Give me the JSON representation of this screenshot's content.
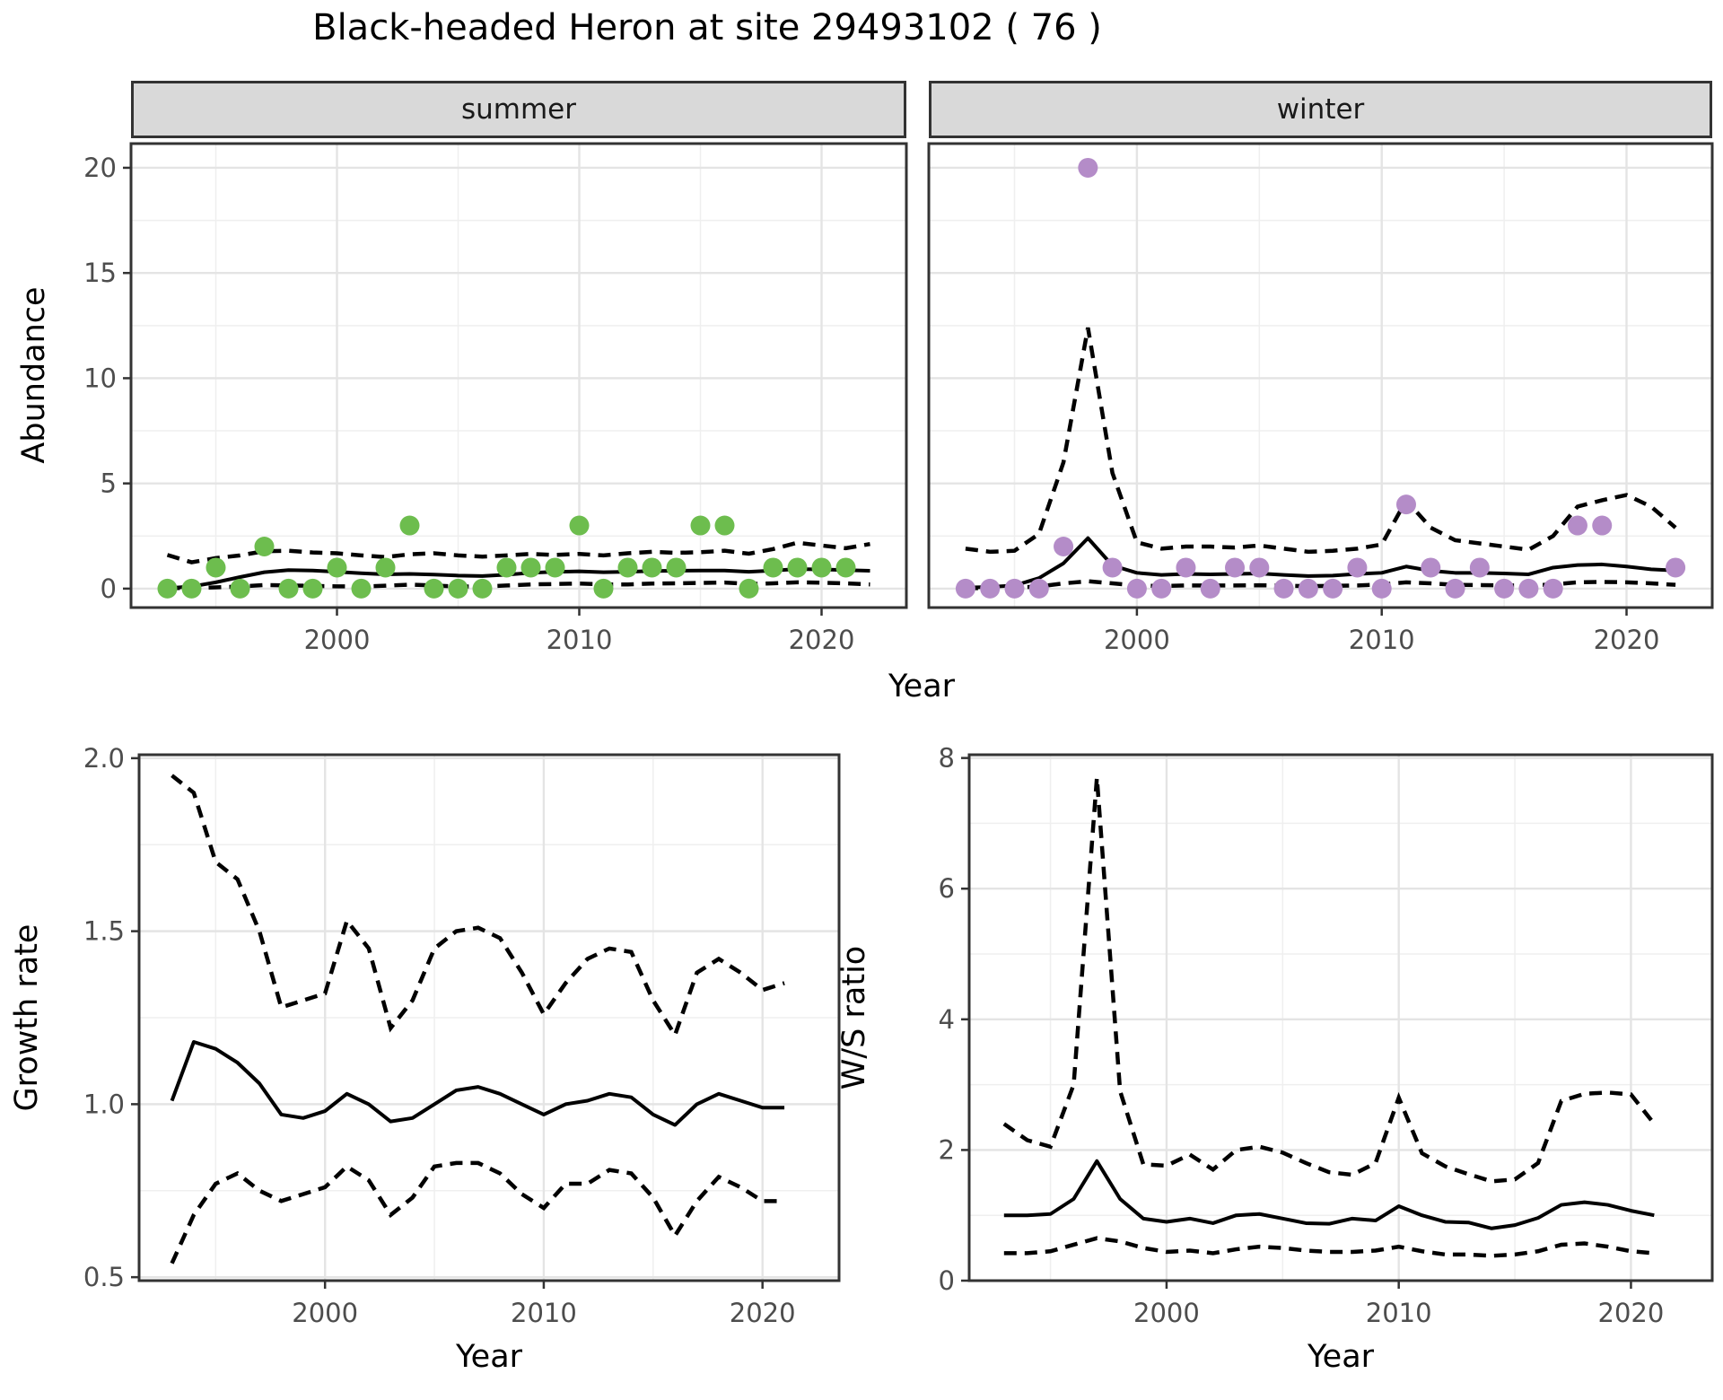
{
  "title": "Black-headed Heron at site 29493102 ( 76 )",
  "colors": {
    "summer_points": "#6dbd4e",
    "winter_points": "#b48cc8",
    "line": "#000000",
    "grid_major": "#e4e4e4",
    "grid_minor": "#efefef",
    "panel_border": "#333333",
    "strip_bg": "#d9d9d9",
    "tick_text": "#4d4d4d"
  },
  "chart_data": [
    {
      "id": "abundance",
      "type": "scatter",
      "title": "",
      "xlabel": "Year",
      "ylabel": "Abundance",
      "xlim": [
        1991.5,
        2023.5
      ],
      "ylim": [
        -0.9,
        21.15
      ],
      "xticks": [
        2000,
        2010,
        2020
      ],
      "xtick_labels": [
        "2000",
        "2010",
        "2020"
      ],
      "xminor": [
        1995,
        2005,
        2015
      ],
      "yticks": [
        0,
        5,
        10,
        15,
        20
      ],
      "ytick_labels": [
        "0",
        "5",
        "10",
        "15",
        "20"
      ],
      "yminor": [
        2.5,
        7.5,
        12.5,
        17.5
      ],
      "grid": true,
      "legend": "none",
      "facets": [
        {
          "label": "summer",
          "point_color": "#6dbd4e",
          "points": {
            "years": [
              1993,
              1994,
              1995,
              1996,
              1997,
              1998,
              1999,
              2000,
              2001,
              2002,
              2003,
              2004,
              2005,
              2006,
              2007,
              2008,
              2009,
              2010,
              2011,
              2012,
              2013,
              2014,
              2015,
              2016,
              2017,
              2018,
              2019,
              2020,
              2021
            ],
            "values": [
              0,
              0,
              1,
              0,
              2,
              0,
              0,
              1,
              0,
              1,
              3,
              0,
              0,
              0,
              1,
              1,
              1,
              3,
              0,
              1,
              1,
              1,
              3,
              3,
              0,
              1,
              1,
              1,
              1
            ]
          },
          "fit": {
            "years": [
              1993,
              1994,
              1995,
              1996,
              1997,
              1998,
              1999,
              2000,
              2001,
              2002,
              2003,
              2004,
              2005,
              2006,
              2007,
              2008,
              2009,
              2010,
              2011,
              2012,
              2013,
              2014,
              2015,
              2016,
              2017,
              2018,
              2019,
              2020,
              2021,
              2022
            ],
            "mean": [
              0.02,
              0.1,
              0.3,
              0.55,
              0.78,
              0.88,
              0.86,
              0.8,
              0.73,
              0.68,
              0.7,
              0.67,
              0.62,
              0.6,
              0.66,
              0.75,
              0.8,
              0.82,
              0.78,
              0.8,
              0.84,
              0.85,
              0.86,
              0.86,
              0.8,
              0.86,
              0.93,
              0.91,
              0.88,
              0.85
            ],
            "upper": [
              1.6,
              1.25,
              1.45,
              1.58,
              1.78,
              1.8,
              1.72,
              1.68,
              1.58,
              1.5,
              1.63,
              1.68,
              1.58,
              1.52,
              1.58,
              1.65,
              1.6,
              1.65,
              1.58,
              1.68,
              1.75,
              1.7,
              1.73,
              1.8,
              1.66,
              1.88,
              2.18,
              2.05,
              1.92,
              2.12
            ],
            "lower": [
              0.02,
              0.03,
              0.06,
              0.1,
              0.17,
              0.15,
              0.13,
              0.11,
              0.1,
              0.14,
              0.19,
              0.15,
              0.1,
              0.1,
              0.15,
              0.2,
              0.22,
              0.24,
              0.2,
              0.2,
              0.24,
              0.25,
              0.27,
              0.29,
              0.22,
              0.25,
              0.3,
              0.28,
              0.25,
              0.2
            ]
          }
        },
        {
          "label": "winter",
          "point_color": "#b48cc8",
          "points": {
            "years": [
              1993,
              1994,
              1995,
              1996,
              1997,
              1998,
              1999,
              2000,
              2001,
              2002,
              2003,
              2004,
              2005,
              2006,
              2007,
              2008,
              2009,
              2010,
              2011,
              2012,
              2013,
              2014,
              2015,
              2016,
              2017,
              2018,
              2019,
              2022
            ],
            "values": [
              0,
              0,
              0,
              0,
              2,
              20,
              1,
              0,
              0,
              1,
              0,
              1,
              1,
              0,
              0,
              0,
              1,
              0,
              4,
              1,
              0,
              1,
              0,
              0,
              0,
              3,
              3,
              1
            ]
          },
          "fit": {
            "years": [
              1993,
              1994,
              1995,
              1996,
              1997,
              1998,
              1999,
              2000,
              2001,
              2002,
              2003,
              2004,
              2005,
              2006,
              2007,
              2008,
              2009,
              2010,
              2011,
              2012,
              2013,
              2014,
              2015,
              2016,
              2017,
              2018,
              2019,
              2020,
              2021,
              2022
            ],
            "mean": [
              0.05,
              0.08,
              0.15,
              0.5,
              1.2,
              2.4,
              1.1,
              0.75,
              0.65,
              0.7,
              0.68,
              0.7,
              0.72,
              0.65,
              0.6,
              0.62,
              0.7,
              0.75,
              1.05,
              0.85,
              0.75,
              0.75,
              0.72,
              0.68,
              1.0,
              1.12,
              1.15,
              1.05,
              0.92,
              0.86
            ],
            "upper": [
              1.9,
              1.75,
              1.8,
              2.6,
              6.0,
              12.4,
              5.5,
              2.2,
              1.9,
              2.0,
              2.0,
              1.95,
              2.05,
              1.9,
              1.75,
              1.8,
              1.9,
              2.1,
              4.2,
              2.9,
              2.3,
              2.15,
              2.0,
              1.85,
              2.5,
              3.9,
              4.2,
              4.45,
              3.9,
              2.9
            ],
            "lower": [
              0.02,
              0.02,
              0.05,
              0.1,
              0.25,
              0.35,
              0.25,
              0.15,
              0.12,
              0.15,
              0.15,
              0.15,
              0.16,
              0.14,
              0.12,
              0.13,
              0.15,
              0.2,
              0.3,
              0.25,
              0.18,
              0.17,
              0.15,
              0.15,
              0.2,
              0.3,
              0.32,
              0.3,
              0.25,
              0.18
            ]
          }
        }
      ]
    },
    {
      "id": "growth_rate",
      "type": "line",
      "title": "",
      "xlabel": "Year",
      "ylabel": "Growth rate",
      "xlim": [
        1991.5,
        2023.5
      ],
      "ylim": [
        0.49,
        2.01
      ],
      "xticks": [
        2000,
        2010,
        2020
      ],
      "xtick_labels": [
        "2000",
        "2010",
        "2020"
      ],
      "xminor": [
        1995,
        2005,
        2015
      ],
      "yticks": [
        0.5,
        1.0,
        1.5,
        2.0
      ],
      "ytick_labels": [
        "0.5",
        "1.0",
        "1.5",
        "2.0"
      ],
      "yminor": [
        0.75,
        1.25,
        1.75
      ],
      "grid": true,
      "legend": "none",
      "series": {
        "years": [
          1993,
          1994,
          1995,
          1996,
          1997,
          1998,
          1999,
          2000,
          2001,
          2002,
          2003,
          2004,
          2005,
          2006,
          2007,
          2008,
          2009,
          2010,
          2011,
          2012,
          2013,
          2014,
          2015,
          2016,
          2017,
          2018,
          2019,
          2020,
          2021
        ],
        "mean": [
          1.01,
          1.18,
          1.16,
          1.12,
          1.06,
          0.97,
          0.96,
          0.98,
          1.03,
          1.0,
          0.95,
          0.96,
          1.0,
          1.04,
          1.05,
          1.03,
          1.0,
          0.97,
          1.0,
          1.01,
          1.03,
          1.02,
          0.97,
          0.94,
          1.0,
          1.03,
          1.01,
          0.99,
          0.99
        ],
        "upper": [
          1.95,
          1.9,
          1.7,
          1.65,
          1.5,
          1.28,
          1.3,
          1.32,
          1.53,
          1.45,
          1.22,
          1.3,
          1.45,
          1.5,
          1.51,
          1.48,
          1.38,
          1.26,
          1.35,
          1.42,
          1.45,
          1.44,
          1.3,
          1.2,
          1.38,
          1.42,
          1.38,
          1.33,
          1.35
        ],
        "lower": [
          0.54,
          0.68,
          0.77,
          0.8,
          0.75,
          0.72,
          0.74,
          0.76,
          0.82,
          0.78,
          0.68,
          0.73,
          0.82,
          0.83,
          0.83,
          0.8,
          0.74,
          0.7,
          0.77,
          0.77,
          0.81,
          0.8,
          0.73,
          0.62,
          0.72,
          0.79,
          0.76,
          0.72,
          0.72
        ]
      }
    },
    {
      "id": "ws_ratio",
      "type": "line",
      "title": "",
      "xlabel": "Year",
      "ylabel": "W/S ratio",
      "xlim": [
        1991.5,
        2023.5
      ],
      "ylim": [
        0,
        8.05
      ],
      "xticks": [
        2000,
        2010,
        2020
      ],
      "xtick_labels": [
        "2000",
        "2010",
        "2020"
      ],
      "xminor": [
        1995,
        2005,
        2015
      ],
      "yticks": [
        0,
        2,
        4,
        6,
        8
      ],
      "ytick_labels": [
        "0",
        "2",
        "4",
        "6",
        "8"
      ],
      "yminor": [
        1,
        3,
        5,
        7
      ],
      "grid": true,
      "legend": "none",
      "series": {
        "years": [
          1993,
          1994,
          1995,
          1996,
          1997,
          1998,
          1999,
          2000,
          2001,
          2002,
          2003,
          2004,
          2005,
          2006,
          2007,
          2008,
          2009,
          2010,
          2011,
          2012,
          2013,
          2014,
          2015,
          2016,
          2017,
          2018,
          2019,
          2020,
          2021
        ],
        "mean": [
          1.0,
          1.0,
          1.02,
          1.25,
          1.83,
          1.25,
          0.95,
          0.9,
          0.95,
          0.88,
          1.0,
          1.02,
          0.95,
          0.88,
          0.87,
          0.95,
          0.92,
          1.14,
          1.0,
          0.9,
          0.89,
          0.8,
          0.85,
          0.96,
          1.16,
          1.2,
          1.16,
          1.07,
          1.0
        ],
        "upper": [
          2.4,
          2.15,
          2.05,
          3.0,
          7.7,
          2.9,
          1.78,
          1.76,
          1.93,
          1.7,
          2.0,
          2.05,
          1.96,
          1.8,
          1.66,
          1.62,
          1.8,
          2.8,
          1.95,
          1.75,
          1.63,
          1.52,
          1.55,
          1.8,
          2.75,
          2.86,
          2.88,
          2.85,
          2.4
        ],
        "lower": [
          0.42,
          0.42,
          0.45,
          0.55,
          0.65,
          0.6,
          0.5,
          0.44,
          0.46,
          0.42,
          0.48,
          0.52,
          0.5,
          0.46,
          0.44,
          0.44,
          0.46,
          0.52,
          0.45,
          0.4,
          0.4,
          0.38,
          0.4,
          0.45,
          0.55,
          0.57,
          0.52,
          0.45,
          0.42
        ]
      }
    }
  ]
}
